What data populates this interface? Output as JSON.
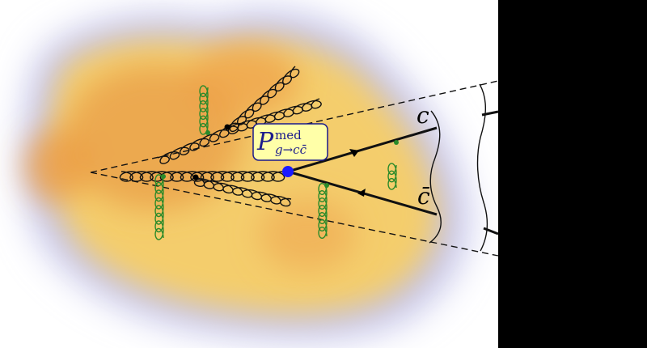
{
  "labels": {
    "quark_top": "c",
    "quark_bottom": "c̄",
    "vertex_main": "P",
    "vertex_sup": "med",
    "vertex_sub": "g→cc̄",
    "note_upper": "",
    "note_lower": ""
  },
  "colors": {
    "medium_core": "#e8963a",
    "medium_mid": "#f4c866",
    "medium_edge": "#b9b9e4",
    "gluon": "#111111",
    "soft_gluon": "#2a8a2a",
    "vertex": "#1a1aff",
    "label_box_fill": "#ffffa8",
    "label_box_stroke": "#1a1a8c",
    "right_panel": "#000000"
  },
  "icons": {
    "cone": "dashed-cone",
    "vertex": "blue-dot",
    "spring": "coil-gluon"
  }
}
